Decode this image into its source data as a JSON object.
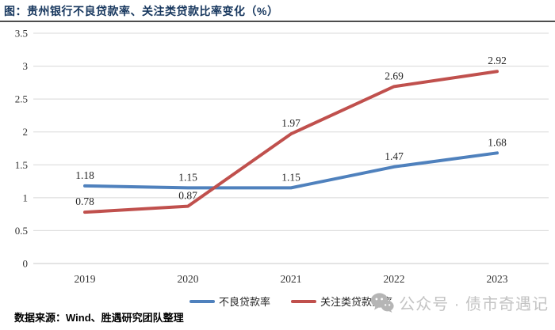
{
  "title": "图：贵州银行不良贷款率、关注类贷款比率变化（%）",
  "footer": {
    "source": "数据来源：Wind、胜遇研究团队整理"
  },
  "watermark": {
    "text": "公众号 · 债市奇遇记",
    "icon": "wechat-icon"
  },
  "colors": {
    "title_text": "#17375E",
    "title_rule": "#4d4d4d",
    "gridline": "#D8D8D8",
    "zero_axis": "#C9C9C9",
    "axis_text": "#333333",
    "data_label_text": "#262626",
    "watermark_gray": "#c3c3c3"
  },
  "chart_data": {
    "type": "line",
    "categories": [
      "2019",
      "2020",
      "2021",
      "2022",
      "2023"
    ],
    "series": [
      {
        "name": "不良贷款率",
        "color": "#4F81BD",
        "values": [
          1.18,
          1.15,
          1.15,
          1.47,
          1.68
        ]
      },
      {
        "name": "关注类贷款比率",
        "color": "#C0504D",
        "values": [
          0.78,
          0.87,
          1.97,
          2.69,
          2.92
        ]
      }
    ],
    "title": "图：贵州银行不良贷款率、关注类贷款比率变化（%）",
    "xlabel": "",
    "ylabel": "",
    "ylim": [
      0,
      3.5
    ],
    "ytick_step": 0.5,
    "yticks": [
      "0",
      "0.5",
      "1",
      "1.5",
      "2",
      "2.5",
      "3",
      "3.5"
    ],
    "grid": "horizontal",
    "legend_position": "bottom",
    "data_labels": true
  }
}
